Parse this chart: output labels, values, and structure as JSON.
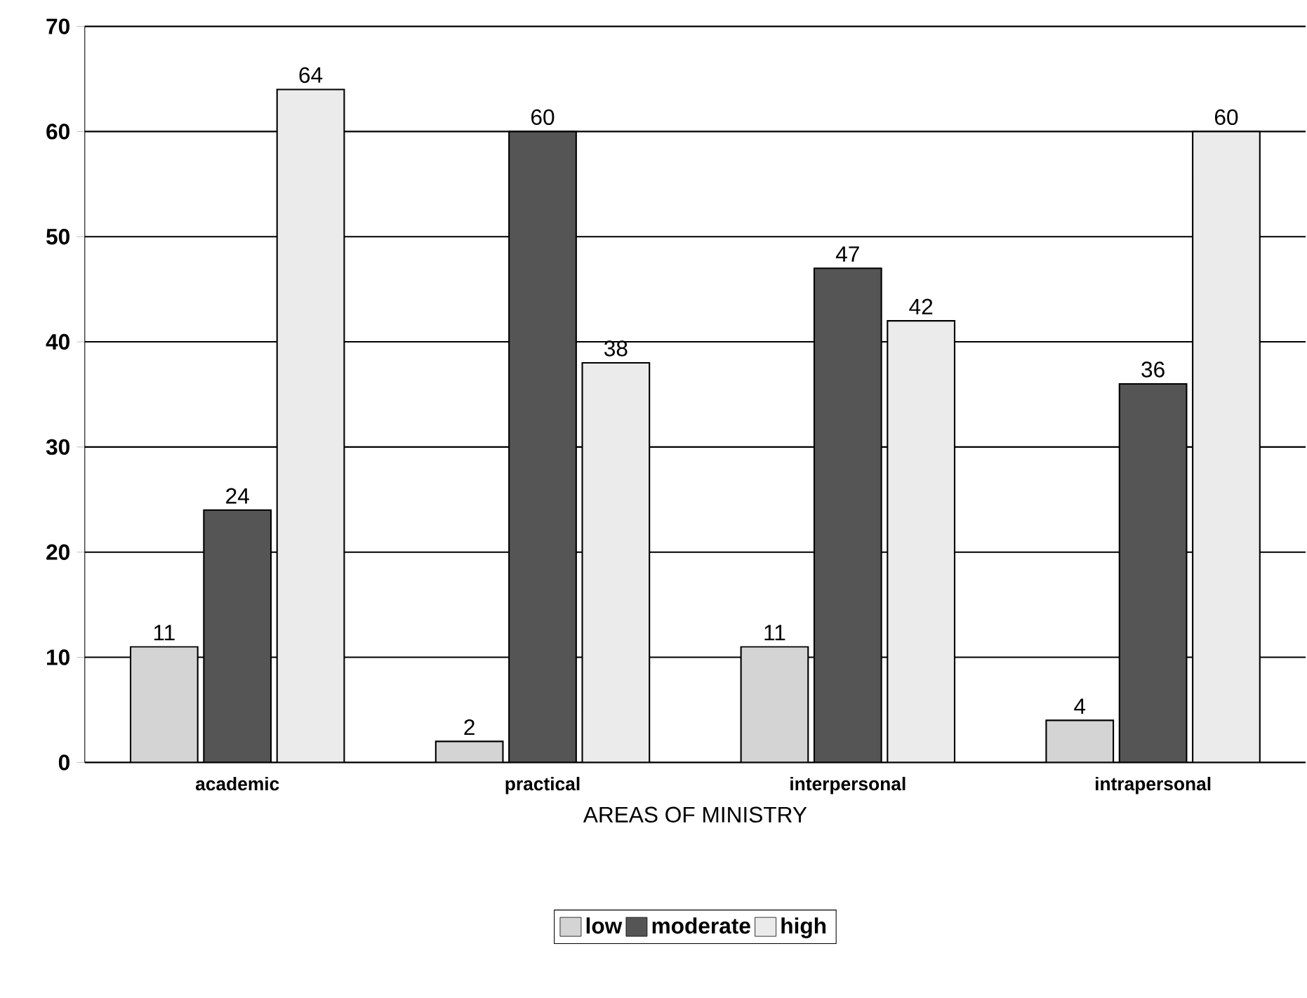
{
  "chart_data": {
    "type": "bar",
    "xlabel": "AREAS OF MINISTRY",
    "categories": [
      "academic",
      "practical",
      "interpersonal",
      "intrapersonal"
    ],
    "series": [
      {
        "name": "low",
        "color": "#d4d4d4",
        "values": [
          11,
          2,
          11,
          4
        ]
      },
      {
        "name": "moderate",
        "color": "#555555",
        "values": [
          24,
          60,
          47,
          36
        ]
      },
      {
        "name": "high",
        "color": "#ebebeb",
        "values": [
          64,
          38,
          42,
          60
        ]
      }
    ],
    "ylim": [
      0,
      70
    ],
    "yticks": [
      0,
      10,
      20,
      30,
      40,
      50,
      60,
      70
    ],
    "grid": "y",
    "legend": "bottom",
    "data_labels": true
  }
}
